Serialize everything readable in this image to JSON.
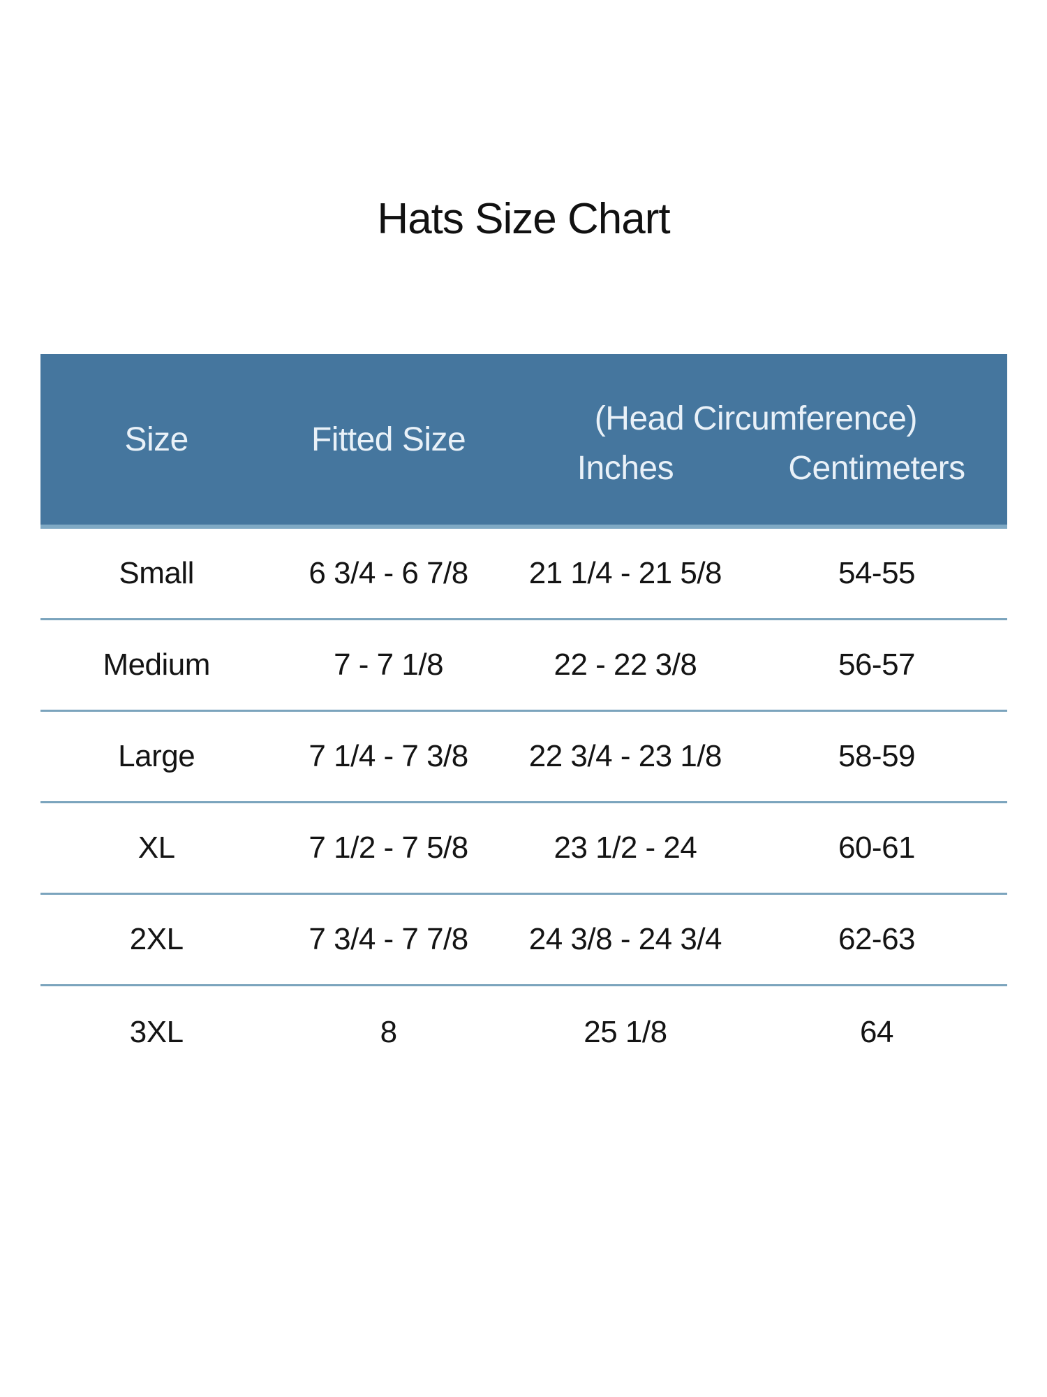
{
  "title": "Hats Size Chart",
  "table": {
    "headers": {
      "size": "Size",
      "fitted_size": "Fitted Size",
      "head_circumference_group": "(Head Circumference)",
      "inches": "Inches",
      "centimeters": "Centimeters"
    },
    "rows": [
      {
        "size": "Small",
        "fitted": "6 3/4 - 6 7/8",
        "inches": "21 1/4 - 21 5/8",
        "cm": "54-55"
      },
      {
        "size": "Medium",
        "fitted": "7 - 7 1/8",
        "inches": "22 - 22 3/8",
        "cm": "56-57"
      },
      {
        "size": "Large",
        "fitted": "7 1/4 - 7 3/8",
        "inches": "22 3/4 - 23 1/8",
        "cm": "58-59"
      },
      {
        "size": "XL",
        "fitted": "7 1/2 - 7 5/8",
        "inches": "23 1/2 - 24",
        "cm": "60-61"
      },
      {
        "size": "2XL",
        "fitted": "7 3/4 - 7 7/8",
        "inches": "24 3/8 - 24 3/4",
        "cm": "62-63"
      },
      {
        "size": "3XL",
        "fitted": "8",
        "inches": "25 1/8",
        "cm": "64"
      }
    ]
  },
  "colors": {
    "header_background": "#45769e",
    "header_bottom_border": "#7fa9c4",
    "header_text": "#e9f1f8",
    "row_divider": "#7ba4bd",
    "body_text": "#141414",
    "title_text": "#111111",
    "page_background": "#ffffff"
  }
}
